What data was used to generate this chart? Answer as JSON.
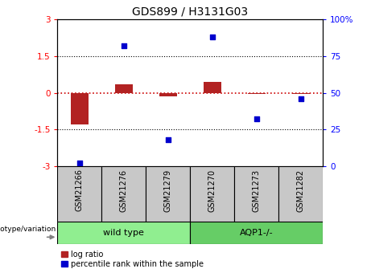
{
  "title": "GDS899 / H3131G03",
  "categories": [
    "GSM21266",
    "GSM21276",
    "GSM21279",
    "GSM21270",
    "GSM21273",
    "GSM21282"
  ],
  "log_ratio": [
    -1.3,
    0.35,
    -0.15,
    0.45,
    -0.05,
    -0.05
  ],
  "percentile_rank": [
    2,
    82,
    18,
    88,
    32,
    46
  ],
  "ylim_left": [
    -3,
    3
  ],
  "ylim_right": [
    0,
    100
  ],
  "bar_color_red": "#b22222",
  "bar_color_blue": "#0000cd",
  "zero_line_color": "#cc0000",
  "dot_line_color": "#000000",
  "groups": [
    {
      "label": "wild type",
      "start": 0,
      "end": 3,
      "color": "#90ee90"
    },
    {
      "label": "AQP1-/-",
      "start": 3,
      "end": 6,
      "color": "#66cd66"
    }
  ],
  "genotype_label": "genotype/variation",
  "legend_red": "log ratio",
  "legend_blue": "percentile rank within the sample",
  "background_color": "#ffffff",
  "title_fontsize": 10,
  "label_box_color": "#c8c8c8",
  "left_yticks": [
    -3,
    -1.5,
    0,
    1.5,
    3
  ],
  "right_yticks": [
    0,
    25,
    50,
    75,
    100
  ],
  "right_yticklabels": [
    "0",
    "25",
    "50",
    "75",
    "100%"
  ]
}
